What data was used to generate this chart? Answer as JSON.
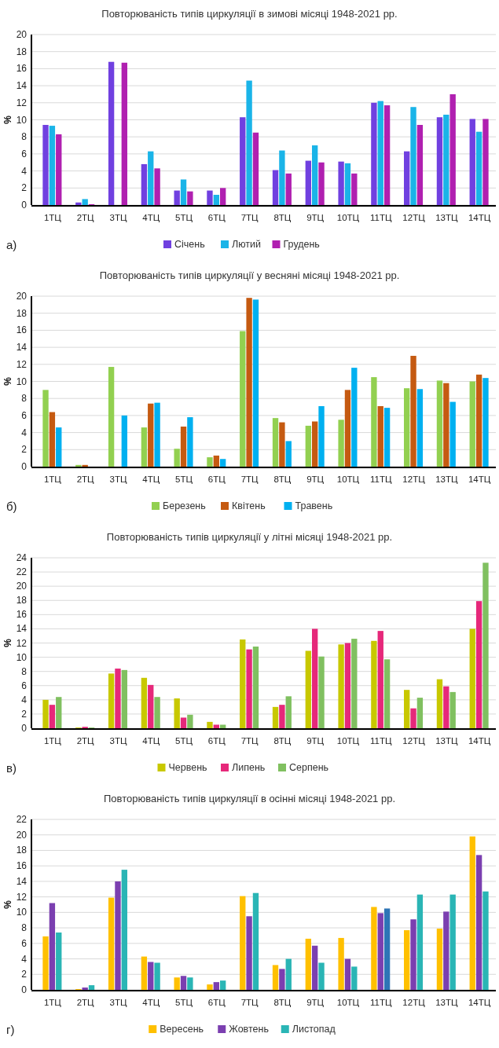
{
  "chart_data": [
    {
      "type": "bar",
      "title": "Повторюваність типів циркуляції в зимові місяці 1948-2021 рр.",
      "ylabel": "%",
      "categories": [
        "1ТЦ",
        "2ТЦ",
        "3ТЦ",
        "4ТЦ",
        "5ТЦ",
        "6ТЦ",
        "7ТЦ",
        "8ТЦ",
        "9ТЦ",
        "10ТЦ",
        "11ТЦ",
        "12ТЦ",
        "13ТЦ",
        "14ТЦ"
      ],
      "series": [
        {
          "name": "Січень",
          "color": "#7040e0",
          "values": [
            9.4,
            0.3,
            16.8,
            4.8,
            1.7,
            1.7,
            10.3,
            4.1,
            5.2,
            5.1,
            12.0,
            6.3,
            10.3,
            10.1
          ]
        },
        {
          "name": "Лютий",
          "color": "#1ab4e8",
          "values": [
            9.3,
            0.7,
            0,
            6.3,
            3.0,
            1.2,
            14.6,
            6.4,
            7.0,
            4.9,
            12.2,
            11.5,
            10.6,
            8.6
          ]
        },
        {
          "name": "Грудень",
          "color": "#b020b0",
          "values": [
            8.3,
            0.1,
            16.7,
            4.3,
            1.6,
            2.0,
            8.5,
            3.7,
            5.0,
            3.7,
            11.7,
            9.4,
            13.0,
            10.1
          ]
        }
      ],
      "ylim": [
        0,
        20
      ],
      "yticks": [
        0,
        2,
        4,
        6,
        8,
        10,
        12,
        14,
        16,
        18,
        20
      ],
      "grid": "y",
      "legend": "bottom",
      "annotations": [
        "а)"
      ]
    },
    {
      "type": "bar",
      "title": "Повторюваність типів циркуляції у весняні місяці 1948-2021 рр.",
      "ylabel": "%",
      "categories": [
        "1ТЦ",
        "2ТЦ",
        "3ТЦ",
        "4ТЦ",
        "5ТЦ",
        "6ТЦ",
        "7ТЦ",
        "8ТЦ",
        "9ТЦ",
        "10ТЦ",
        "11ТЦ",
        "12ТЦ",
        "13ТЦ",
        "14ТЦ"
      ],
      "series": [
        {
          "name": "Березень",
          "color": "#92d050",
          "values": [
            9.0,
            0.2,
            11.7,
            4.6,
            2.1,
            1.1,
            15.9,
            5.7,
            4.8,
            5.5,
            10.5,
            9.2,
            10.1,
            10.0
          ]
        },
        {
          "name": "Квітень",
          "color": "#c55a11",
          "values": [
            6.4,
            0.2,
            0,
            7.4,
            4.7,
            1.3,
            19.8,
            5.2,
            5.3,
            9.0,
            7.1,
            13.0,
            9.8,
            10.8
          ]
        },
        {
          "name": "Травень",
          "color": "#00b0f0",
          "values": [
            4.6,
            0,
            6.0,
            7.5,
            5.8,
            0.9,
            19.6,
            3.0,
            7.1,
            11.6,
            6.9,
            9.1,
            7.6,
            10.4
          ]
        }
      ],
      "ylim": [
        0,
        20
      ],
      "yticks": [
        0,
        2,
        4,
        6,
        8,
        10,
        12,
        14,
        16,
        18,
        20
      ],
      "grid": "y",
      "legend": "bottom",
      "annotations": [
        "б)"
      ]
    },
    {
      "type": "bar",
      "title": "Повторюваність типів циркуляції у літні місяці 1948-2021 рр.",
      "ylabel": "%",
      "categories": [
        "1ТЦ",
        "2ТЦ",
        "3ТЦ",
        "4ТЦ",
        "5ТЦ",
        "6ТЦ",
        "7ТЦ",
        "8ТЦ",
        "9ТЦ",
        "10ТЦ",
        "11ТЦ",
        "12ТЦ",
        "13ТЦ",
        "14ТЦ"
      ],
      "series": [
        {
          "name": "Червень",
          "color": "#c8c800",
          "values": [
            4.0,
            0.1,
            7.7,
            7.1,
            4.2,
            0.9,
            12.5,
            3.0,
            10.9,
            11.8,
            12.3,
            5.4,
            6.9,
            14.0
          ]
        },
        {
          "name": "Липень",
          "color": "#e6287a",
          "values": [
            3.3,
            0.2,
            8.4,
            6.1,
            1.5,
            0.5,
            11.1,
            3.3,
            14.0,
            12.0,
            13.7,
            2.8,
            5.9,
            17.9
          ]
        },
        {
          "name": "Серпень",
          "color": "#80c060",
          "values": [
            4.4,
            0.1,
            8.2,
            4.4,
            1.9,
            0.5,
            11.5,
            4.5,
            10.1,
            12.6,
            9.7,
            4.3,
            5.1,
            23.3
          ]
        }
      ],
      "ylim": [
        0,
        24
      ],
      "yticks": [
        0,
        2,
        4,
        6,
        8,
        10,
        12,
        14,
        16,
        18,
        20,
        22,
        24
      ],
      "grid": "y",
      "legend": "bottom",
      "annotations": [
        "в)"
      ]
    },
    {
      "type": "bar",
      "title": "Повторюваність типів циркуляції в осінні місяці 1948-2021 рр.",
      "ylabel": "%",
      "categories": [
        "1ТЦ",
        "2ТЦ",
        "3ТЦ",
        "4ТЦ",
        "5ТЦ",
        "6ТЦ",
        "7ТЦ",
        "8ТЦ",
        "9ТЦ",
        "10ТЦ",
        "11ТЦ",
        "12ТЦ",
        "13ТЦ",
        "14ТЦ"
      ],
      "series": [
        {
          "name": "Вересень",
          "color": "#ffc000",
          "values": [
            6.9,
            0.1,
            11.9,
            4.3,
            1.6,
            0.7,
            12.1,
            3.2,
            6.6,
            6.7,
            10.7,
            7.7,
            7.9,
            19.8
          ]
        },
        {
          "name": "Жовтень",
          "color": "#7b3fb0",
          "values": [
            11.2,
            0.3,
            14.0,
            3.6,
            1.8,
            1.0,
            9.5,
            2.7,
            5.7,
            4.0,
            9.9,
            9.1,
            10.1,
            17.4
          ]
        },
        {
          "name": "Листопад",
          "color": "#2ab5b5",
          "colors": [
            "#2ab5b5",
            "#2ab5b5",
            "#2ab5b5",
            "#2ab5b5",
            "#2ab5b5",
            "#2ab5b5",
            "#2ab5b5",
            "#2ab5b5",
            "#2ab5b5",
            "#2ab5b5",
            "#2e75b6",
            "#2ab5b5",
            "#2ab5b5",
            "#2ab5b5"
          ],
          "values": [
            7.4,
            0.6,
            15.5,
            3.5,
            1.6,
            1.2,
            12.5,
            4.0,
            3.5,
            3.0,
            10.5,
            12.3,
            12.3,
            12.7
          ]
        }
      ],
      "ylim": [
        0,
        22
      ],
      "yticks": [
        0,
        2,
        4,
        6,
        8,
        10,
        12,
        14,
        16,
        18,
        20,
        22
      ],
      "grid": "y",
      "legend": "bottom",
      "annotations": [
        "г)"
      ]
    }
  ]
}
